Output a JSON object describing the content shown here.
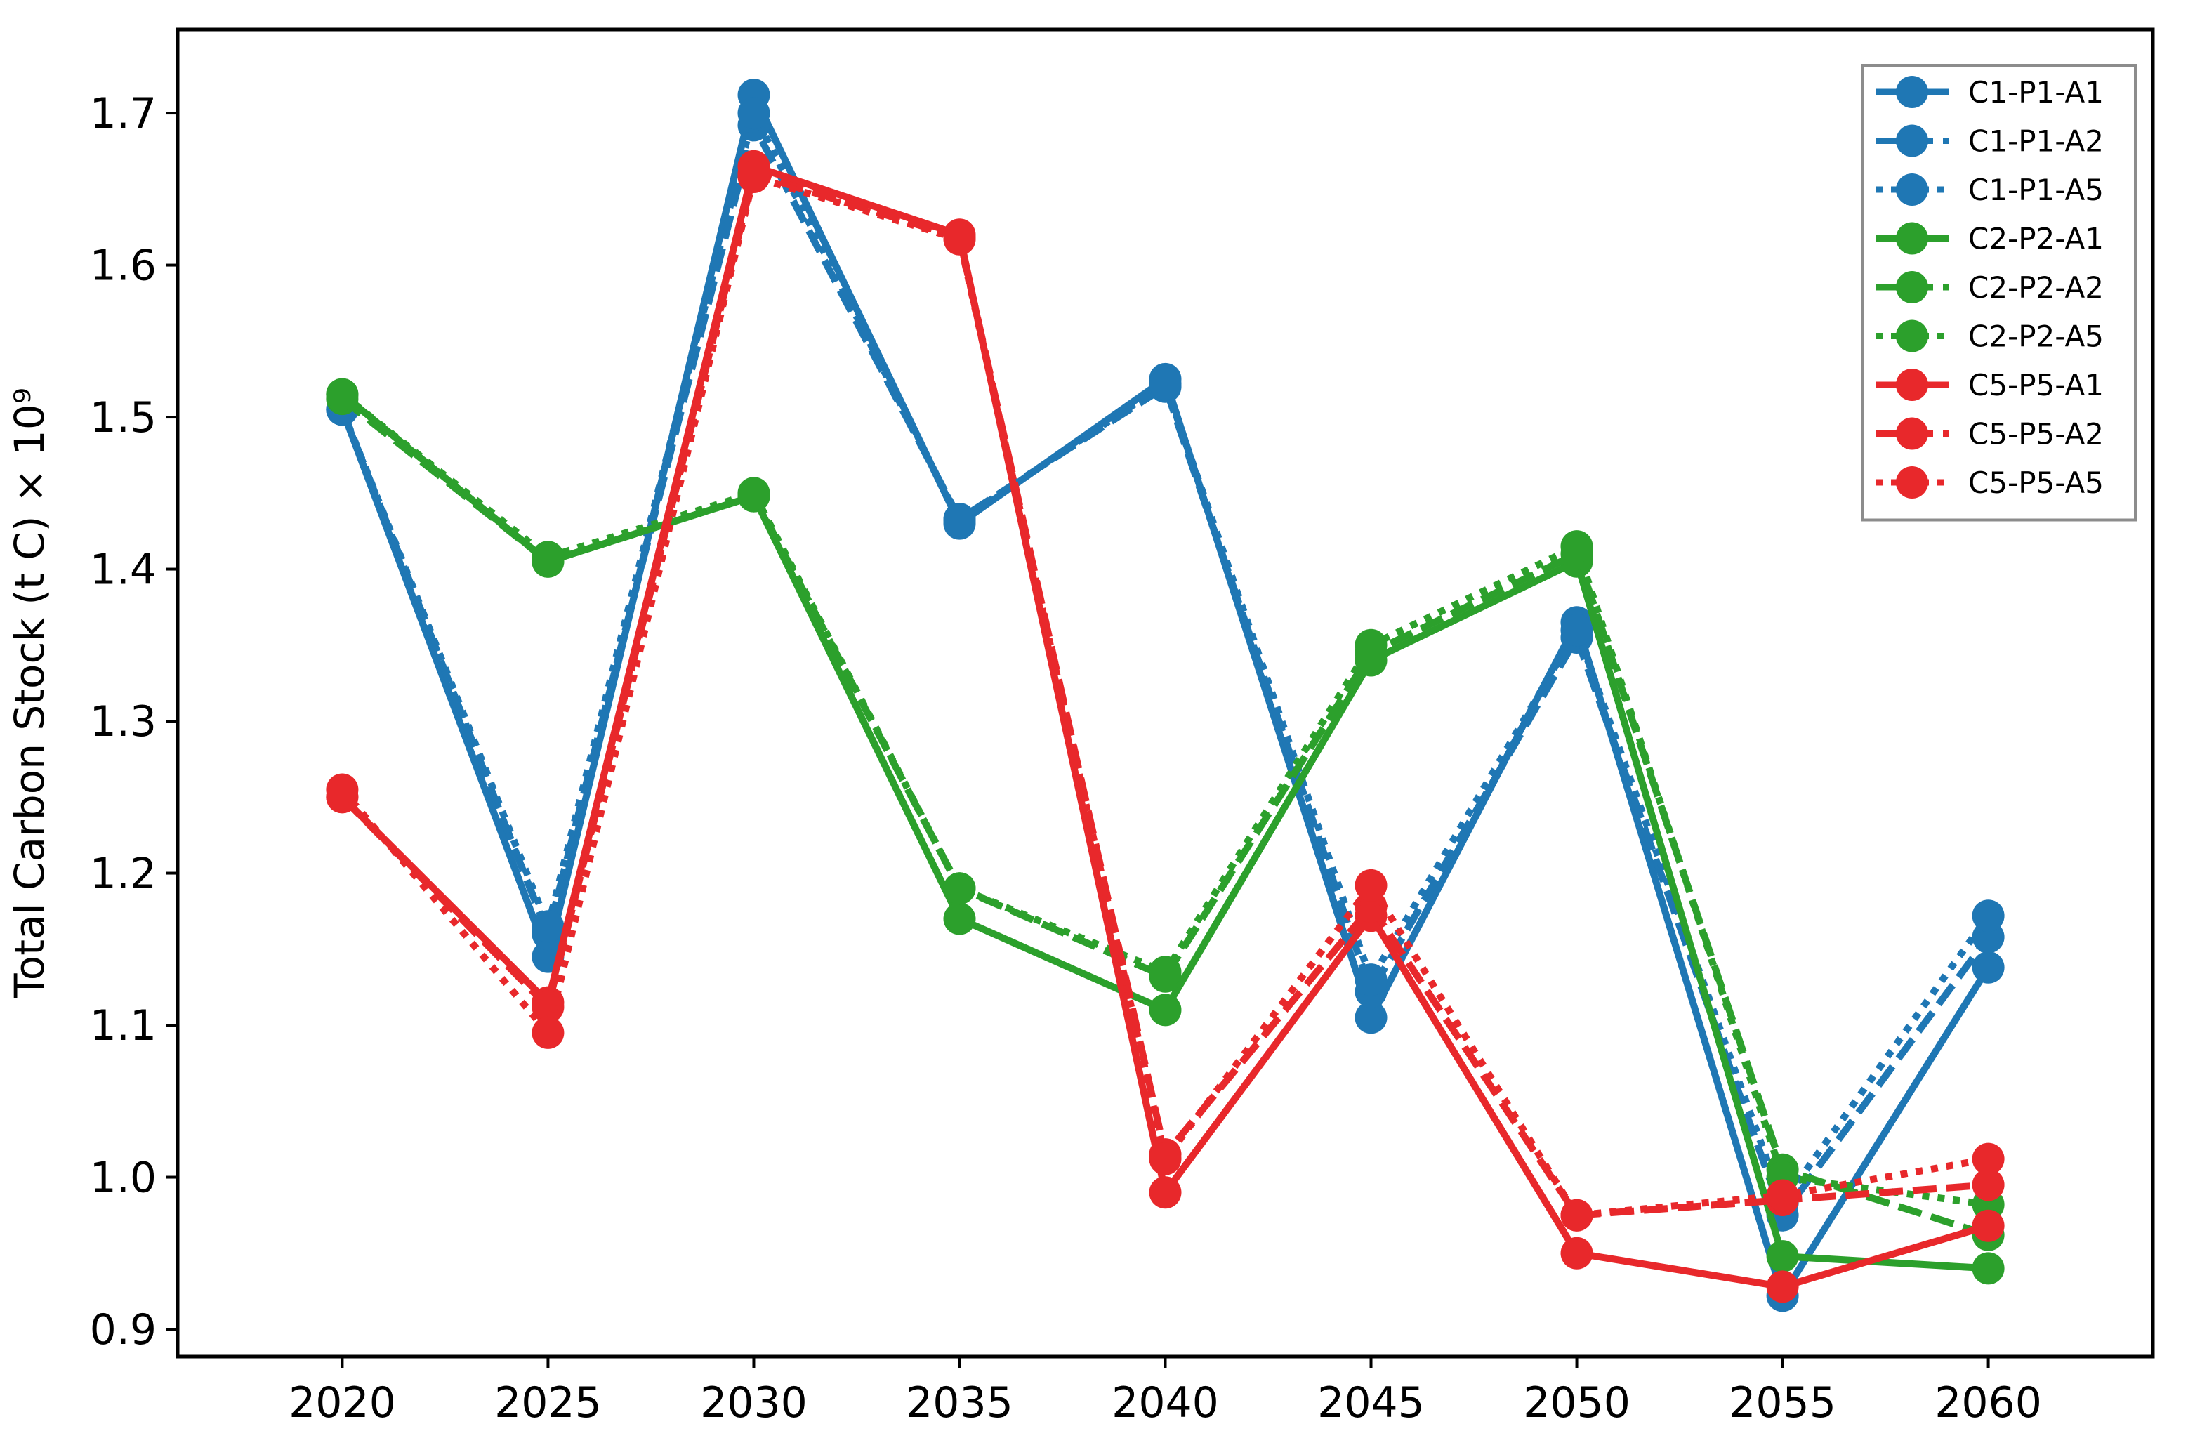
{
  "chart_data": {
    "type": "line",
    "title": "",
    "xlabel": "",
    "ylabel": "Total Carbon Stock (t C) × 10⁹",
    "x": [
      2020,
      2025,
      2030,
      2035,
      2040,
      2045,
      2050,
      2055,
      2060
    ],
    "xlim": [
      2016,
      2064
    ],
    "ylim": [
      0.882,
      1.755
    ],
    "yticks": [
      "0.9",
      "1.0",
      "1.1",
      "1.2",
      "1.3",
      "1.4",
      "1.5",
      "1.6",
      "1.7"
    ],
    "ytick_values": [
      0.9,
      1.0,
      1.1,
      1.2,
      1.3,
      1.4,
      1.5,
      1.6,
      1.7
    ],
    "xticks": [
      "2020",
      "2025",
      "2030",
      "2035",
      "2040",
      "2045",
      "2050",
      "2055",
      "2060"
    ],
    "grid": false,
    "legend_position": "top-right",
    "series": [
      {
        "name": "C1-P1-A1",
        "color": "#1f77b4",
        "style": "solid",
        "values": [
          1.505,
          1.145,
          1.712,
          1.43,
          1.525,
          1.105,
          1.365,
          0.922,
          1.138
        ]
      },
      {
        "name": "C1-P1-A2",
        "color": "#1f77b4",
        "style": "dashed",
        "values": [
          1.505,
          1.16,
          1.692,
          1.433,
          1.52,
          1.122,
          1.355,
          0.975,
          1.158
        ]
      },
      {
        "name": "C1-P1-A5",
        "color": "#1f77b4",
        "style": "dotted",
        "values": [
          1.505,
          1.165,
          1.7,
          1.432,
          1.522,
          1.13,
          1.36,
          0.983,
          1.172
        ]
      },
      {
        "name": "C2-P2-A1",
        "color": "#2ca02c",
        "style": "solid",
        "values": [
          1.515,
          1.405,
          1.448,
          1.17,
          1.11,
          1.34,
          1.405,
          0.948,
          0.94
        ]
      },
      {
        "name": "C2-P2-A2",
        "color": "#2ca02c",
        "style": "dashed",
        "values": [
          1.512,
          1.405,
          1.448,
          1.19,
          1.132,
          1.345,
          1.41,
          1.005,
          0.962
        ]
      },
      {
        "name": "C2-P2-A5",
        "color": "#2ca02c",
        "style": "dotted",
        "values": [
          1.515,
          1.408,
          1.45,
          1.19,
          1.135,
          1.35,
          1.415,
          1.0,
          0.982
        ]
      },
      {
        "name": "C5-P5-A1",
        "color": "#e8282b",
        "style": "solid",
        "values": [
          1.25,
          1.115,
          1.665,
          1.62,
          0.99,
          1.172,
          0.95,
          0.928,
          0.968
        ]
      },
      {
        "name": "C5-P5-A2",
        "color": "#e8282b",
        "style": "dashed",
        "values": [
          1.25,
          1.112,
          1.66,
          1.618,
          1.015,
          1.178,
          0.975,
          0.985,
          0.995
        ]
      },
      {
        "name": "C5-P5-A5",
        "color": "#e8282b",
        "style": "dotted",
        "values": [
          1.255,
          1.095,
          1.658,
          1.617,
          1.012,
          1.192,
          0.975,
          0.988,
          1.012
        ]
      }
    ]
  }
}
